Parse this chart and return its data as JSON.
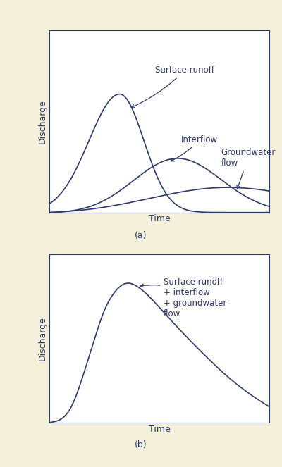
{
  "background_color": "#f5f0dc",
  "plot_bg_color": "#ffffff",
  "line_color": "#2d3a6b",
  "text_color": "#2d3a6b",
  "fig_width": 4.0,
  "fig_height": 6.63,
  "label_a": "(a)",
  "label_b": "(b)",
  "xlabel": "Time",
  "ylabel": "Discharge",
  "annotation_surface": "Surface runoff",
  "annotation_interflow": "Interflow",
  "annotation_gw": "Groundwater\nflow",
  "annotation_combined": "Surface runoff\n+ interflow\n+ groundwater\nflow",
  "fs_label": 9,
  "fs_annot": 8.5,
  "lw": 1.2
}
